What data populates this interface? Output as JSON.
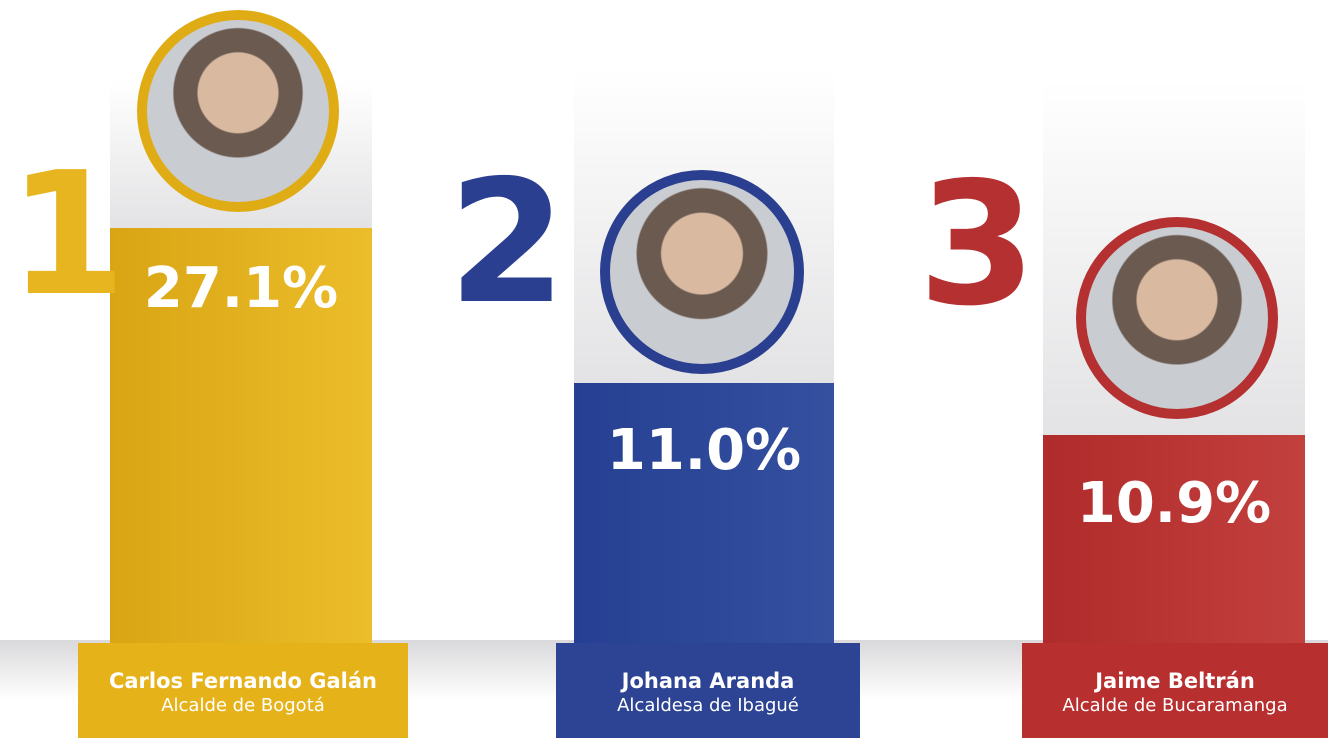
{
  "ranking": [
    {
      "rank": "1",
      "percent": "27.1%",
      "name": "Carlos Fernando Galán",
      "role": "Alcalde de Bogotá"
    },
    {
      "rank": "2",
      "percent": "11.0%",
      "name": "Johana Aranda",
      "role": "Alcaldesa de Ibagué"
    },
    {
      "rank": "3",
      "percent": "10.9%",
      "name": "Jaime Beltrán",
      "role": "Alcalde de Bucaramanga"
    }
  ]
}
